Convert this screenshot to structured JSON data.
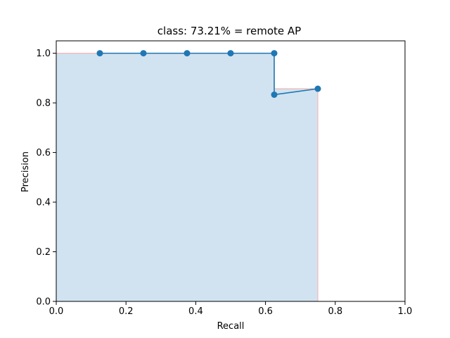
{
  "chart_data": {
    "type": "line",
    "title": "class: 73.21% = remote AP",
    "xlabel": "Recall",
    "ylabel": "Precision",
    "xlim": [
      0,
      1.0
    ],
    "ylim": [
      0,
      1.05
    ],
    "xticks": [
      0.0,
      0.2,
      0.4,
      0.6,
      0.8,
      1.0
    ],
    "xtick_labels": [
      "0.0",
      "0.2",
      "0.4",
      "0.6",
      "0.8",
      "1.0"
    ],
    "yticks": [
      0.0,
      0.2,
      0.4,
      0.6,
      0.8,
      1.0
    ],
    "ytick_labels": [
      "0.0",
      "0.2",
      "0.4",
      "0.6",
      "0.8",
      "1.0"
    ],
    "grid": false,
    "series": [
      {
        "points": [
          {
            "x": 0.125,
            "y": 1.0
          },
          {
            "x": 0.25,
            "y": 1.0
          },
          {
            "x": 0.375,
            "y": 1.0
          },
          {
            "x": 0.5,
            "y": 1.0
          },
          {
            "x": 0.625,
            "y": 1.0
          },
          {
            "x": 0.625,
            "y": 0.833
          },
          {
            "x": 0.75,
            "y": 0.857
          }
        ],
        "color": "#1f77b4",
        "marker": "circle"
      }
    ],
    "area": {
      "points": [
        {
          "x": 0.0,
          "y": 1.0
        },
        {
          "x": 0.625,
          "y": 1.0
        },
        {
          "x": 0.625,
          "y": 0.857
        },
        {
          "x": 0.75,
          "y": 0.857
        },
        {
          "x": 0.75,
          "y": 0.0
        }
      ],
      "fill_color": "#d1e3f0",
      "edge_color": "#f4b6b6"
    }
  }
}
